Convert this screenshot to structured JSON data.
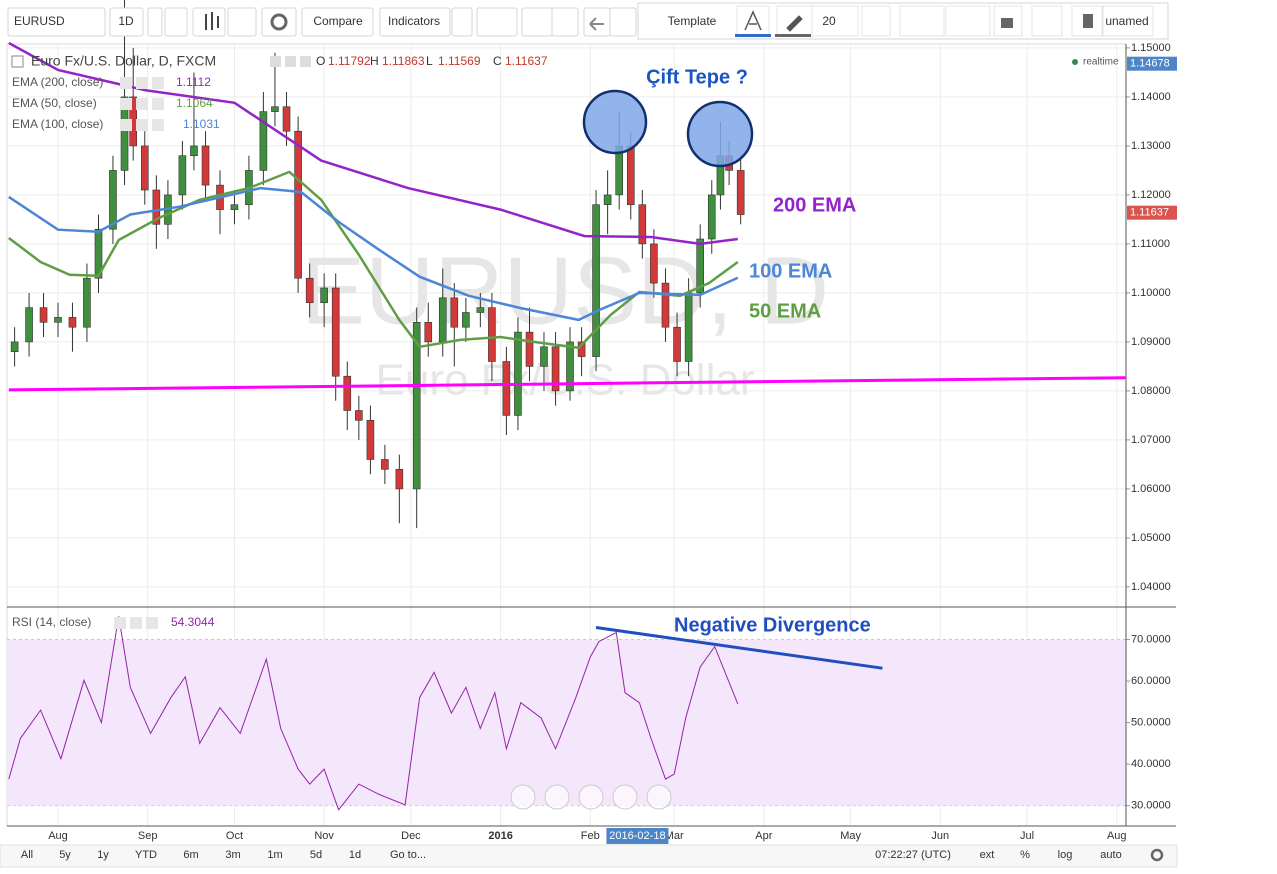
{
  "toolbar": {
    "symbol": "EURUSD",
    "interval": "1D",
    "compare": "Compare",
    "indicators": "Indicators",
    "template": "Template",
    "font_size": 20,
    "layout_name": "unamed"
  },
  "chart_data": [
    {
      "type": "candlestick",
      "title": "Euro Fx/U.S. Dollar, D, FXCM",
      "watermark": [
        "EURUSD, D",
        "Euro Fx/U.S. Dollar"
      ],
      "realtime": "realtime",
      "legend_values": [
        {
          "name": "O",
          "value": 1.11792
        },
        {
          "name": "H",
          "value": 1.11863
        },
        {
          "name": "L",
          "value": 1.11569
        },
        {
          "name": "C",
          "value": 1.11637
        }
      ],
      "candles": {
        "up_color": "#3f8f3f",
        "down_color": "#d23a3a",
        "x": [
          -15,
          -10,
          -5,
          0,
          5,
          10,
          14,
          19,
          23,
          26,
          30,
          34,
          38,
          43,
          47,
          51,
          56,
          61,
          66,
          71,
          75,
          79,
          83,
          87,
          92,
          96,
          100,
          104,
          108,
          113,
          118,
          124,
          128,
          133,
          137,
          141,
          146,
          150,
          155,
          159,
          163,
          168,
          172,
          177,
          181,
          186,
          190,
          194,
          198,
          202,
          206,
          210,
          214,
          218,
          222,
          226,
          229,
          232,
          236
        ],
        "open": [
          1.088,
          1.09,
          1.097,
          1.094,
          1.095,
          1.093,
          1.103,
          1.113,
          1.125,
          1.14,
          1.13,
          1.121,
          1.114,
          1.12,
          1.128,
          1.13,
          1.122,
          1.117,
          1.118,
          1.125,
          1.137,
          1.138,
          1.133,
          1.103,
          1.098,
          1.101,
          1.083,
          1.076,
          1.074,
          1.066,
          1.064,
          1.06,
          1.094,
          1.09,
          1.099,
          1.093,
          1.096,
          1.097,
          1.086,
          1.075,
          1.092,
          1.085,
          1.089,
          1.08,
          1.09,
          1.087,
          1.118,
          1.12,
          1.13,
          1.118,
          1.11,
          1.102,
          1.093,
          1.086,
          1.1,
          1.111,
          1.12,
          1.128,
          1.125
        ],
        "high": [
          1.093,
          1.1,
          1.1,
          1.098,
          1.098,
          1.106,
          1.116,
          1.128,
          1.17,
          1.15,
          1.133,
          1.124,
          1.123,
          1.131,
          1.145,
          1.133,
          1.125,
          1.121,
          1.128,
          1.141,
          1.149,
          1.141,
          1.136,
          1.106,
          1.104,
          1.104,
          1.086,
          1.079,
          1.077,
          1.069,
          1.067,
          1.097,
          1.098,
          1.105,
          1.102,
          1.099,
          1.1,
          1.1,
          1.089,
          1.095,
          1.097,
          1.092,
          1.092,
          1.093,
          1.093,
          1.121,
          1.125,
          1.137,
          1.133,
          1.121,
          1.113,
          1.105,
          1.096,
          1.103,
          1.114,
          1.123,
          1.135,
          1.131,
          1.128
        ],
        "low": [
          1.085,
          1.087,
          1.091,
          1.091,
          1.088,
          1.09,
          1.1,
          1.11,
          1.122,
          1.127,
          1.118,
          1.109,
          1.111,
          1.117,
          1.125,
          1.119,
          1.112,
          1.114,
          1.115,
          1.122,
          1.134,
          1.13,
          1.1,
          1.095,
          1.093,
          1.078,
          1.072,
          1.07,
          1.063,
          1.061,
          1.053,
          1.052,
          1.087,
          1.087,
          1.085,
          1.09,
          1.093,
          1.082,
          1.071,
          1.072,
          1.082,
          1.08,
          1.077,
          1.078,
          1.083,
          1.084,
          1.112,
          1.117,
          1.115,
          1.107,
          1.099,
          1.09,
          1.083,
          1.083,
          1.097,
          1.108,
          1.117,
          1.122,
          1.114
        ],
        "close": [
          1.09,
          1.097,
          1.094,
          1.095,
          1.093,
          1.103,
          1.113,
          1.125,
          1.14,
          1.13,
          1.121,
          1.114,
          1.12,
          1.128,
          1.13,
          1.122,
          1.117,
          1.118,
          1.125,
          1.137,
          1.138,
          1.133,
          1.103,
          1.098,
          1.101,
          1.083,
          1.076,
          1.074,
          1.066,
          1.064,
          1.06,
          1.094,
          1.09,
          1.099,
          1.093,
          1.096,
          1.097,
          1.086,
          1.075,
          1.092,
          1.085,
          1.089,
          1.08,
          1.09,
          1.087,
          1.118,
          1.12,
          1.13,
          1.118,
          1.11,
          1.102,
          1.093,
          1.086,
          1.1,
          1.111,
          1.12,
          1.128,
          1.125,
          1.116
        ]
      },
      "series": [
        {
          "name": "EMA (200, close)",
          "legend_value": 1.1112,
          "color": "#9424c9",
          "x": [
            -17,
            0,
            30,
            61,
            91,
            121,
            153,
            182,
            205,
            222,
            235
          ],
          "values": [
            1.151,
            1.1455,
            1.1414,
            1.1388,
            1.127,
            1.1214,
            1.117,
            1.1116,
            1.1114,
            1.11,
            1.111
          ]
        },
        {
          "name": "EMA (50, close)",
          "legend_value": 1.1064,
          "color": "#5f9e45",
          "x": [
            -17,
            -6,
            4,
            14,
            21,
            35,
            49,
            66,
            80,
            91,
            104,
            118,
            125,
            139,
            153,
            167,
            180,
            191,
            201,
            215,
            225,
            235
          ],
          "values": [
            1.1112,
            1.1063,
            1.1037,
            1.1035,
            1.1108,
            1.1153,
            1.119,
            1.1214,
            1.1247,
            1.119,
            1.1078,
            1.0945,
            1.089,
            1.0904,
            1.091,
            1.0898,
            1.0888,
            1.0955,
            1.1002,
            1.0994,
            1.102,
            1.1063
          ]
        },
        {
          "name": "EMA (100, close)",
          "legend_value": 1.1031,
          "color": "#4c86d6",
          "x": [
            -17,
            0,
            14,
            25,
            42,
            70,
            84,
            97,
            111,
            125,
            142,
            160,
            180,
            187,
            201,
            222,
            235
          ],
          "values": [
            1.1196,
            1.1129,
            1.1125,
            1.116,
            1.1176,
            1.1214,
            1.1206,
            1.1145,
            1.1088,
            1.1033,
            1.0994,
            1.0969,
            1.0945,
            1.0965,
            1.1,
            1.0996,
            1.1031
          ]
        }
      ],
      "support_line": {
        "color": "#ff00ff",
        "x": [
          -17,
          369
        ],
        "values": [
          1.0802,
          1.0827
        ]
      },
      "annotations": [
        {
          "text": "Çift Tepe ?",
          "color": "#1a55c0"
        },
        {
          "text": "200 EMA",
          "color": "#9424c9"
        },
        {
          "text": "100 EMA",
          "color": "#4c86d6"
        },
        {
          "text": "50 EMA",
          "color": "#5f9e45"
        }
      ],
      "price_labels": [
        {
          "value": 1.14678,
          "color": "#4c86c8"
        },
        {
          "value": 1.11637,
          "color": "#d9534f"
        }
      ],
      "crosshair": {
        "value": 201,
        "label": "2016-02-18"
      },
      "xlim": [
        -17.63,
        369.2
      ],
      "xticks": [
        {
          "value": 0,
          "label": "Aug"
        },
        {
          "value": 31,
          "label": "Sep"
        },
        {
          "value": 61,
          "label": "Oct"
        },
        {
          "value": 92,
          "label": "Nov"
        },
        {
          "value": 122,
          "label": "Dec"
        },
        {
          "value": 153,
          "label": "2016"
        },
        {
          "value": 184,
          "label": "Feb"
        },
        {
          "value": 213,
          "label": "Mar"
        },
        {
          "value": 244,
          "label": "Apr"
        },
        {
          "value": 274,
          "label": "May"
        },
        {
          "value": 305,
          "label": "Jun"
        },
        {
          "value": 335,
          "label": "Jul"
        },
        {
          "value": 366,
          "label": "Aug"
        }
      ],
      "ylim": [
        1.0361,
        1.1508
      ],
      "yticks": [
        {
          "value": 1.04,
          "label": "1.04000"
        },
        {
          "value": 1.05,
          "label": "1.05000"
        },
        {
          "value": 1.06,
          "label": "1.06000"
        },
        {
          "value": 1.07,
          "label": "1.07000"
        },
        {
          "value": 1.08,
          "label": "1.08000"
        },
        {
          "value": 1.09,
          "label": "1.09000"
        },
        {
          "value": 1.1,
          "label": "1.10000"
        },
        {
          "value": 1.11,
          "label": "1.11000"
        },
        {
          "value": 1.12,
          "label": "1.12000"
        },
        {
          "value": 1.13,
          "label": "1.13000"
        },
        {
          "value": 1.14,
          "label": "1.14000"
        },
        {
          "value": 1.15,
          "label": "1.15000"
        }
      ],
      "grid": true
    },
    {
      "type": "line",
      "title": "RSI (14, close)",
      "legend_value": 54.3044,
      "color": "#9424a8",
      "band_color": "#f4e6fb",
      "x": [
        -17,
        -13,
        -6,
        1,
        9,
        15,
        21,
        25,
        32,
        39,
        44,
        49,
        56,
        63,
        72,
        77,
        83,
        87,
        92,
        97,
        104,
        111,
        120,
        125,
        130,
        136,
        141,
        146,
        151,
        155,
        160,
        167,
        172,
        179,
        184,
        187,
        193,
        196,
        201,
        205,
        210,
        213,
        217,
        222,
        227,
        235
      ],
      "values": [
        36.4,
        46.2,
        53,
        41.3,
        60.2,
        50,
        75.6,
        58.5,
        47.4,
        56,
        61,
        45,
        53.6,
        47.4,
        65.3,
        48.6,
        38.8,
        35.2,
        38.8,
        29,
        35.2,
        32.7,
        30.2,
        56,
        62.1,
        52.3,
        58.5,
        48.6,
        57.2,
        43.7,
        54.8,
        51.1,
        43.7,
        56,
        65.8,
        69.5,
        71.7,
        57.2,
        54.8,
        46.2,
        36.4,
        37.6,
        51.1,
        63.4,
        68.3,
        54.5
      ],
      "trend_line": {
        "label": "Negative Divergence",
        "color": "#1f4fbf",
        "x": [
          186,
          285
        ],
        "values": [
          72.9,
          63.1
        ]
      },
      "xlim": [
        -17.63,
        369.2
      ],
      "ylim": [
        25.1,
        77.6
      ],
      "yticks": [
        {
          "value": 30,
          "label": "30.0000"
        },
        {
          "value": 40,
          "label": "40.0000"
        },
        {
          "value": 50,
          "label": "50.0000"
        },
        {
          "value": 60,
          "label": "60.0000"
        },
        {
          "value": 70,
          "label": "70.0000"
        }
      ],
      "grid": true
    }
  ],
  "bottom_bar": {
    "ranges": [
      "All",
      "5y",
      "1y",
      "YTD",
      "6m",
      "3m",
      "1m",
      "5d",
      "1d"
    ],
    "goto": "Go to...",
    "time": "07:22:27 (UTC)",
    "options": [
      "ext",
      "%",
      "log",
      "auto"
    ]
  }
}
